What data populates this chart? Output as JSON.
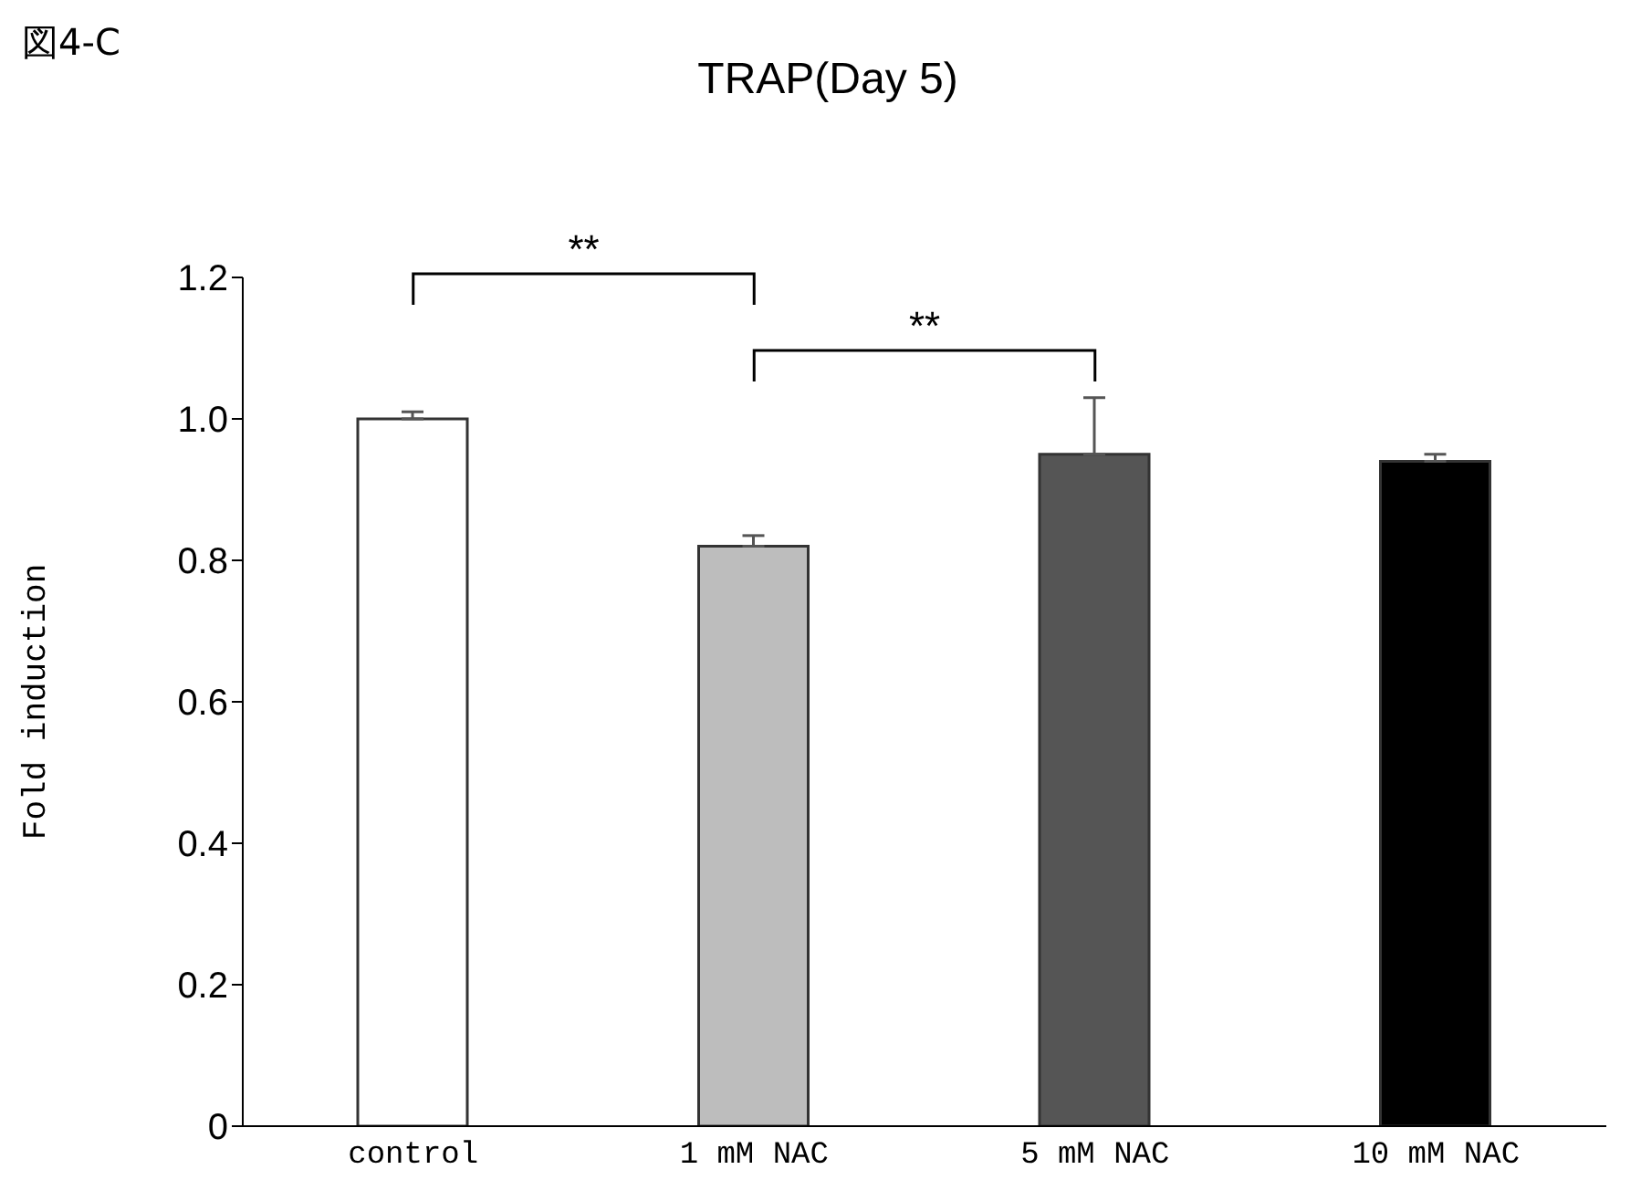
{
  "chart_data": {
    "type": "bar",
    "title": "TRAP(Day 5)",
    "ylabel": "Fold induction",
    "categories": [
      "control",
      "1 mM NAC",
      "5 mM NAC",
      "10 mM NAC"
    ],
    "values": [
      1.0,
      0.82,
      0.95,
      0.94
    ],
    "colors": [
      "#ffffff",
      "#bdbdbd",
      "#555555",
      "#000000"
    ],
    "errors": [
      [
        1.0,
        1.01
      ],
      [
        0.82,
        0.835
      ],
      [
        0.95,
        1.03
      ],
      [
        0.94,
        0.95
      ]
    ],
    "ylim": [
      0,
      1.2
    ],
    "yticks": [
      0,
      0.2,
      0.4,
      0.6,
      0.8,
      {
        "value": 1.0,
        "label": "1.0"
      },
      {
        "value": 1.2,
        "label": "1.2"
      }
    ],
    "annotations": [
      "図4-C",
      "**",
      "**"
    ]
  }
}
